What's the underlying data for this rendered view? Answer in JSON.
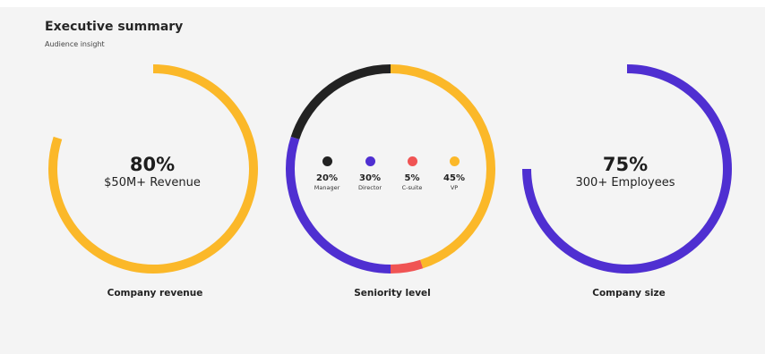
{
  "header": {
    "title": "Executive summary",
    "subtitle": "Audience insight"
  },
  "colors": {
    "yellow": "#fbb829",
    "purple": "#4f2fd1",
    "red": "#f05454",
    "black": "#222222"
  },
  "chart_data": [
    {
      "type": "pie",
      "variant": "ring",
      "title": "Company revenue",
      "center_value": "80%",
      "center_label": "$50M+ Revenue",
      "values": [
        80
      ],
      "color": "#fbb829"
    },
    {
      "type": "pie",
      "variant": "ring",
      "title": "Seniority level",
      "slices": [
        {
          "name": "VP",
          "value": 45,
          "label": "45%",
          "color": "#fbb829"
        },
        {
          "name": "C-suite",
          "value": 5,
          "label": "5%",
          "color": "#f05454"
        },
        {
          "name": "Director",
          "value": 30,
          "label": "30%",
          "color": "#4f2fd1"
        },
        {
          "name": "Manager",
          "value": 20,
          "label": "20%",
          "color": "#222222"
        }
      ],
      "legend_order": [
        3,
        2,
        1,
        0
      ]
    },
    {
      "type": "pie",
      "variant": "ring",
      "title": "Company size",
      "center_value": "75%",
      "center_label": "300+ Employees",
      "values": [
        75
      ],
      "color": "#4f2fd1"
    }
  ]
}
